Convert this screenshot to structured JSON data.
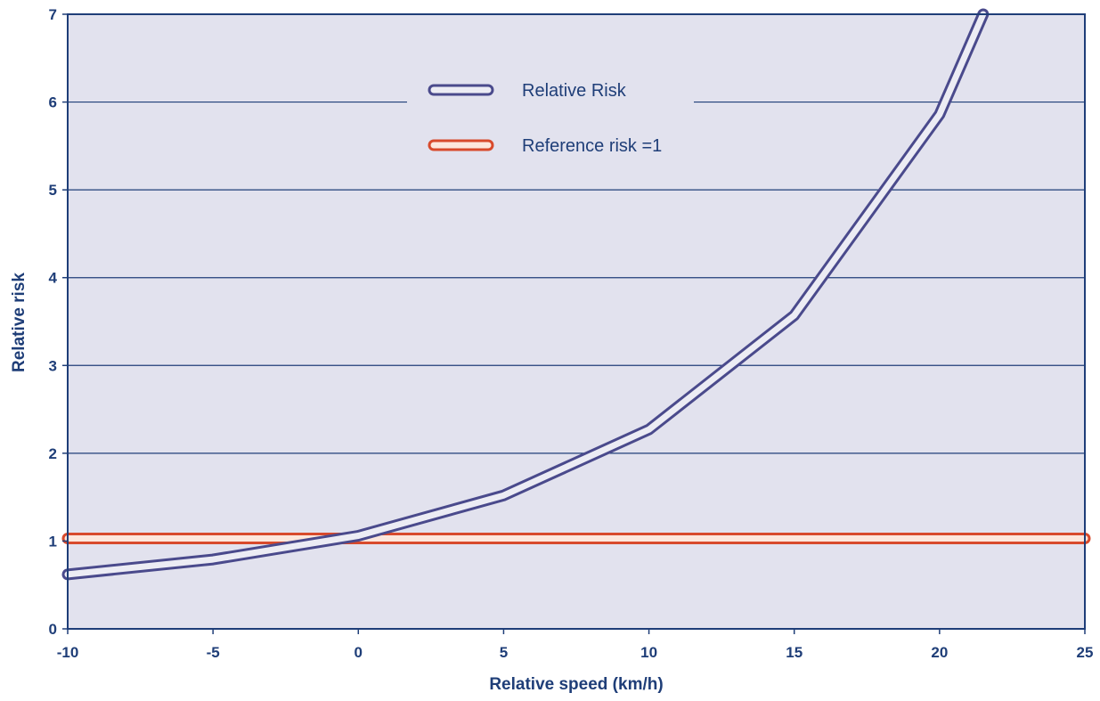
{
  "chart_data": {
    "type": "line",
    "xlabel": "Relative speed (km/h)",
    "ylabel": "Relative risk",
    "xlim": [
      -10,
      25
    ],
    "ylim": [
      0,
      7
    ],
    "x_ticks": [
      "-10",
      "-5",
      "0",
      "5",
      "10",
      "15",
      "20",
      "25"
    ],
    "y_ticks": [
      "0",
      "1",
      "2",
      "3",
      "4",
      "5",
      "6",
      "7"
    ],
    "grid": "horizontal",
    "legend_position": "top-center",
    "background_color": "#e2e2ee",
    "series": [
      {
        "name": "Relative Risk",
        "color": "#4a4a8c",
        "x": [
          -10,
          -5,
          0,
          5,
          10,
          15,
          20,
          21.5
        ],
        "y": [
          0.62,
          0.79,
          1.06,
          1.52,
          2.27,
          3.57,
          5.86,
          7.0
        ]
      },
      {
        "name": "Reference risk =1",
        "color": "#d84a2c",
        "x": [
          -10,
          25
        ],
        "y": [
          1.03,
          1.03
        ]
      }
    ]
  }
}
